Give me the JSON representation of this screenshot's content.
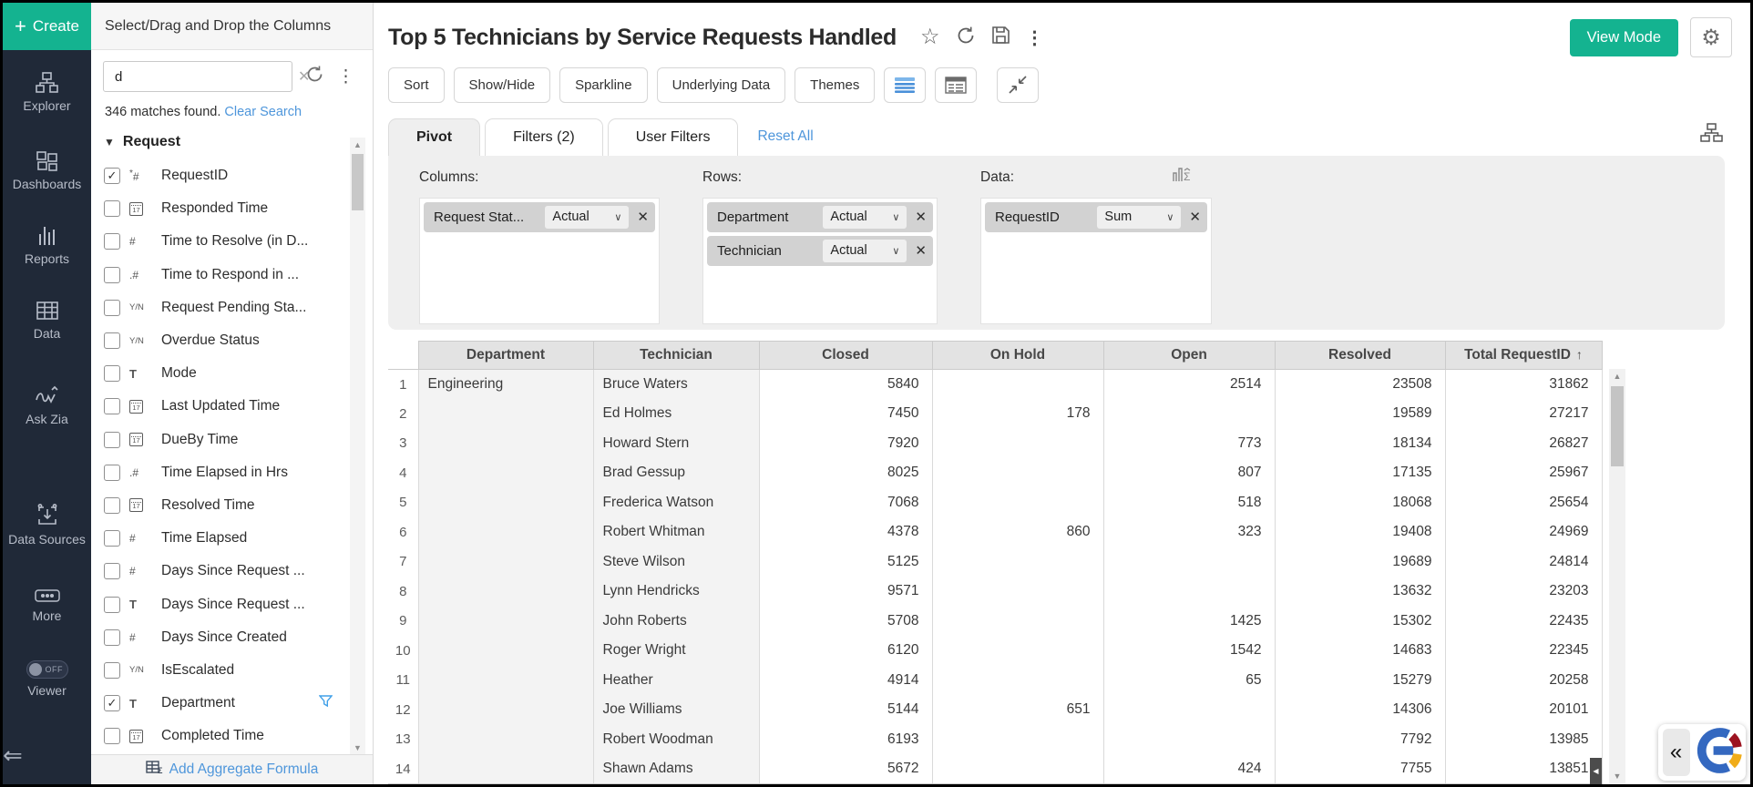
{
  "sidebar": {
    "create_label": "Create",
    "items": [
      {
        "label": "Explorer"
      },
      {
        "label": "Dashboards"
      },
      {
        "label": "Reports"
      },
      {
        "label": "Data"
      },
      {
        "label": "Ask Zia"
      },
      {
        "label": "Data Sources"
      },
      {
        "label": "More"
      },
      {
        "label": "Viewer",
        "toggle": "OFF"
      }
    ]
  },
  "field_panel": {
    "header": "Select/Drag and Drop the Columns",
    "search_value": "d",
    "matches_text": "346 matches found.",
    "clear_search_label": "Clear Search",
    "section_label": "Request",
    "icon_glyphs": {
      "id": "*#",
      "date": "17",
      "number": "#",
      "decimal": ".#",
      "boolean": "Y/N",
      "text": "T"
    },
    "fields": [
      {
        "label": "RequestID",
        "type": "id",
        "checked": true
      },
      {
        "label": "Responded Time",
        "type": "date",
        "checked": false
      },
      {
        "label": "Time to Resolve (in D...",
        "type": "number",
        "checked": false
      },
      {
        "label": "Time to Respond in ...",
        "type": "decimal",
        "checked": false
      },
      {
        "label": "Request Pending Sta...",
        "type": "boolean",
        "checked": false
      },
      {
        "label": "Overdue Status",
        "type": "boolean",
        "checked": false
      },
      {
        "label": "Mode",
        "type": "text",
        "checked": false
      },
      {
        "label": "Last Updated Time",
        "type": "date",
        "checked": false
      },
      {
        "label": "DueBy Time",
        "type": "date",
        "checked": false
      },
      {
        "label": "Time Elapsed in Hrs",
        "type": "decimal",
        "checked": false
      },
      {
        "label": "Resolved Time",
        "type": "date",
        "checked": false
      },
      {
        "label": "Time Elapsed",
        "type": "number",
        "checked": false
      },
      {
        "label": "Days Since Request ...",
        "type": "number",
        "checked": false
      },
      {
        "label": "Days Since Request ...",
        "type": "text",
        "checked": false
      },
      {
        "label": "Days Since Created",
        "type": "number",
        "checked": false
      },
      {
        "label": "IsEscalated",
        "type": "boolean",
        "checked": false
      },
      {
        "label": "Department",
        "type": "text",
        "checked": true,
        "filtered": true
      },
      {
        "label": "Completed Time",
        "type": "date",
        "checked": false
      }
    ],
    "add_aggregate_label": "Add Aggregate Formula"
  },
  "header": {
    "title": "Top 5 Technicians by Service Requests Handled",
    "view_mode_label": "View Mode"
  },
  "toolbar": {
    "buttons": [
      "Sort",
      "Show/Hide",
      "Sparkline",
      "Underlying Data",
      "Themes"
    ]
  },
  "tabs": {
    "pivot": "Pivot",
    "filters": "Filters  (2)",
    "user_filters": "User Filters",
    "reset_all": "Reset All"
  },
  "pivot_config": {
    "columns_label": "Columns:",
    "rows_label": "Rows:",
    "data_label": "Data:",
    "columns": [
      {
        "field": "Request Stat...",
        "agg": "Actual"
      }
    ],
    "rows": [
      {
        "field": "Department",
        "agg": "Actual"
      },
      {
        "field": "Technician",
        "agg": "Actual"
      }
    ],
    "data": [
      {
        "field": "RequestID",
        "agg": "Sum"
      }
    ]
  },
  "table": {
    "columns": [
      "Department",
      "Technician",
      "Closed",
      "On Hold",
      "Open",
      "Resolved",
      "Total RequestID"
    ],
    "sort": {
      "column": "Total RequestID",
      "indicator": "↑"
    },
    "rows": [
      [
        "Engineering",
        "Bruce Waters",
        5840,
        null,
        2514,
        23508,
        31862
      ],
      [
        "",
        "Ed Holmes",
        7450,
        178,
        null,
        19589,
        27217
      ],
      [
        "",
        "Howard Stern",
        7920,
        null,
        773,
        18134,
        26827
      ],
      [
        "",
        "Brad Gessup",
        8025,
        null,
        807,
        17135,
        25967
      ],
      [
        "",
        "Frederica Watson",
        7068,
        null,
        518,
        18068,
        25654
      ],
      [
        "",
        "Robert Whitman",
        4378,
        860,
        323,
        19408,
        24969
      ],
      [
        "",
        "Steve Wilson",
        5125,
        null,
        null,
        19689,
        24814
      ],
      [
        "",
        "Lynn Hendricks",
        9571,
        null,
        null,
        13632,
        23203
      ],
      [
        "",
        "John Roberts",
        5708,
        null,
        1425,
        15302,
        22435
      ],
      [
        "",
        "Roger Wright",
        6120,
        null,
        1542,
        14683,
        22345
      ],
      [
        "",
        "Heather",
        4914,
        null,
        65,
        15279,
        20258
      ],
      [
        "",
        "Joe Williams",
        5144,
        651,
        null,
        14306,
        20101
      ],
      [
        "",
        "Robert Woodman",
        6193,
        null,
        null,
        7792,
        13985
      ],
      [
        "",
        "Shawn Adams",
        5672,
        null,
        424,
        7755,
        13851
      ]
    ]
  },
  "colors": {
    "accent_green": "#14b390",
    "link_blue": "#4e96db",
    "sidebar_bg": "#202938"
  }
}
